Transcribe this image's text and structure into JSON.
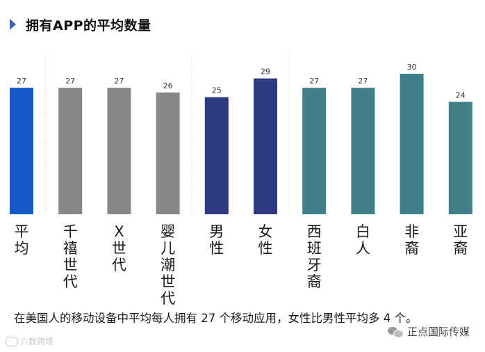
{
  "title": "拥有APP的平均数量",
  "footnote": "在美国人的移动设备中平均每人拥有 27 个移动应用，女性比男性平均多 4 个。",
  "watermark_left": "六数跨境",
  "watermark_right": "正点国际传媒",
  "chart_data": {
    "type": "bar",
    "title": "拥有APP的平均数量",
    "xlabel": "",
    "ylabel": "",
    "categories": [
      "平均",
      "千禧世代",
      "X世代",
      "婴儿潮世代",
      "男性",
      "女性",
      "西班牙裔",
      "白人",
      "非裔",
      "亚裔"
    ],
    "values": [
      27,
      27,
      27,
      26,
      25,
      29,
      27,
      27,
      30,
      24
    ],
    "value_labels": [
      "27",
      "27",
      "27",
      "26",
      "25",
      "29",
      "27",
      "27",
      "30",
      "24"
    ],
    "group_colors": [
      "#1558c7",
      "#878787",
      "#878787",
      "#878787",
      "#2e3a80",
      "#2e3a80",
      "#3f7f88",
      "#3f7f88",
      "#3f7f88",
      "#3f7f88"
    ],
    "group_separators_after": [
      0,
      3,
      5
    ],
    "ylim": [
      0,
      30
    ],
    "grid": false
  }
}
